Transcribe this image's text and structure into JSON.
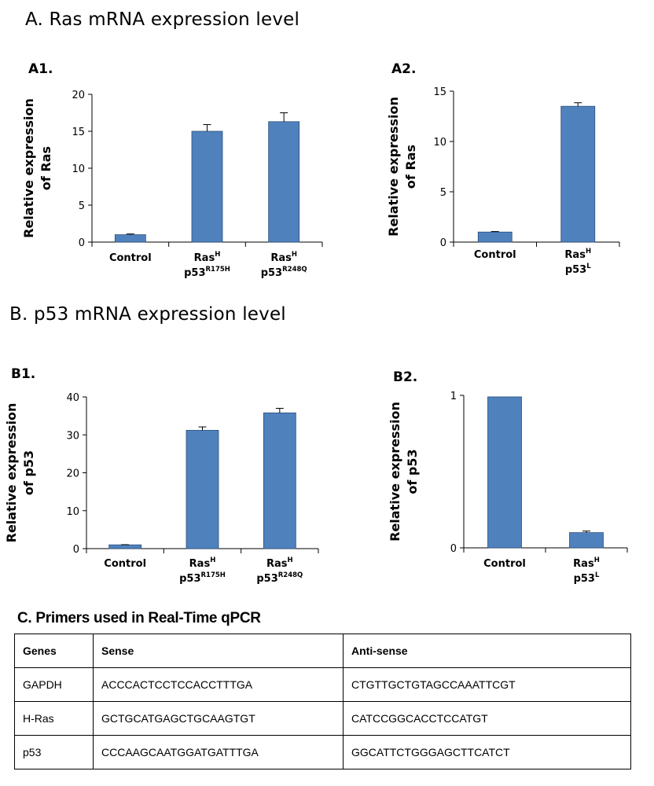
{
  "sections": {
    "a_title": "A. Ras mRNA expression level",
    "b_title": "B. p53 mRNA expression level"
  },
  "colors": {
    "bar_fill": "#4f81bd",
    "bar_stroke": "#2b4f7a",
    "axis": "#000000"
  },
  "chart_data": [
    {
      "id": "A1",
      "panel_label": "A1.",
      "type": "bar",
      "ylabel_lines": [
        "Relative expression",
        "of Ras"
      ],
      "ylim": [
        0,
        20
      ],
      "yticks": [
        0,
        5,
        10,
        15,
        20
      ],
      "categories": [
        {
          "base": "Control",
          "line2": "",
          "line2_sup": ""
        },
        {
          "base": "Ras",
          "sup": "H",
          "line2": "p53",
          "line2_sup": "R175H"
        },
        {
          "base": "Ras",
          "sup": "H",
          "line2": "p53",
          "line2_sup": "R248Q"
        }
      ],
      "values": [
        1.0,
        15.0,
        16.3
      ],
      "errors": [
        0.1,
        0.9,
        1.2
      ]
    },
    {
      "id": "A2",
      "panel_label": "A2.",
      "type": "bar",
      "ylabel_lines": [
        "Relative expression",
        "of Ras"
      ],
      "ylim": [
        0,
        15
      ],
      "yticks": [
        0,
        5,
        10,
        15
      ],
      "categories": [
        {
          "base": "Control",
          "line2": "",
          "line2_sup": ""
        },
        {
          "base": "Ras",
          "sup": "H",
          "line2": "p53",
          "line2_sup": "L"
        }
      ],
      "values": [
        1.0,
        13.5
      ],
      "errors": [
        0.05,
        0.35
      ]
    },
    {
      "id": "B1",
      "panel_label": "B1.",
      "type": "bar",
      "ylabel_lines": [
        "Relative expression",
        "of p53"
      ],
      "ylim": [
        0,
        40
      ],
      "yticks": [
        0,
        10,
        20,
        30,
        40
      ],
      "categories": [
        {
          "base": "Control",
          "line2": "",
          "line2_sup": ""
        },
        {
          "base": "Ras",
          "sup": "H",
          "line2": "p53",
          "line2_sup": "R175H"
        },
        {
          "base": "Ras",
          "sup": "H",
          "line2": "p53",
          "line2_sup": "R248Q"
        }
      ],
      "values": [
        1.0,
        31.2,
        35.8
      ],
      "errors": [
        0.05,
        0.9,
        1.2
      ]
    },
    {
      "id": "B2",
      "panel_label": "B2.",
      "type": "bar",
      "ylabel_lines": [
        "Relative expression",
        "of p53"
      ],
      "ylim": [
        0,
        1
      ],
      "yticks": [
        0,
        1
      ],
      "categories": [
        {
          "base": "Control",
          "line2": "",
          "line2_sup": ""
        },
        {
          "base": "Ras",
          "sup": "H",
          "line2": "p53",
          "line2_sup": "L"
        }
      ],
      "values": [
        0.99,
        0.1
      ],
      "errors": [
        0.0,
        0.01
      ]
    }
  ],
  "table": {
    "title": "C. Primers used in Real-Time qPCR",
    "headers": [
      "Genes",
      "Sense",
      "Anti-sense"
    ],
    "rows": [
      [
        "GAPDH",
        "ACCCACTCCTCCACCTTTGA",
        "CTGTTGCTGTAGCCAAATTCGT"
      ],
      [
        "H-Ras",
        "GCTGCATGAGCTGCAAGTGT",
        "CATCCGGCACCTCCATGT"
      ],
      [
        "p53",
        "CCCAAGCAATGGATGATTTGA",
        "GGCATTCTGGGAGCTTCATCT"
      ]
    ]
  }
}
